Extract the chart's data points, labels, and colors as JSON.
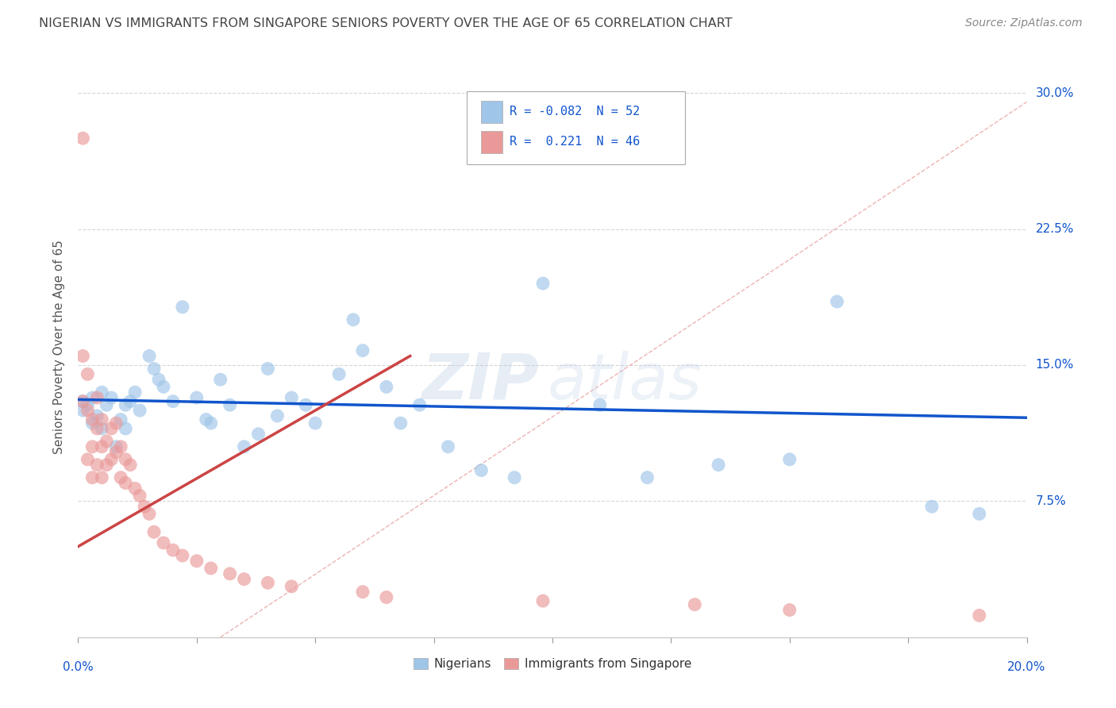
{
  "title": "NIGERIAN VS IMMIGRANTS FROM SINGAPORE SENIORS POVERTY OVER THE AGE OF 65 CORRELATION CHART",
  "source": "Source: ZipAtlas.com",
  "ylabel": "Seniors Poverty Over the Age of 65",
  "y_ticks": [
    0.0,
    0.075,
    0.15,
    0.225,
    0.3
  ],
  "y_tick_labels": [
    "",
    "7.5%",
    "15.0%",
    "22.5%",
    "30.0%"
  ],
  "x_ticks": [
    0.0,
    0.025,
    0.05,
    0.075,
    0.1,
    0.125,
    0.15,
    0.175,
    0.2
  ],
  "legend_R1": "-0.082",
  "legend_N1": "52",
  "legend_R2": "0.221",
  "legend_N2": "46",
  "blue_scatter_color": "#9fc5e8",
  "pink_scatter_color": "#ea9999",
  "blue_line_color": "#1155cc",
  "pink_line_color": "#cc4444",
  "diag_line_color": "#e8a0a0",
  "watermark_color": "#c0cfe8",
  "background_color": "#ffffff",
  "grid_color": "#cccccc",
  "title_color": "#444444",
  "source_color": "#888888",
  "axis_label_color": "#1155cc",
  "nigerians_x": [
    0.001,
    0.001,
    0.002,
    0.003,
    0.003,
    0.004,
    0.005,
    0.005,
    0.006,
    0.007,
    0.008,
    0.009,
    0.01,
    0.01,
    0.011,
    0.012,
    0.013,
    0.015,
    0.016,
    0.017,
    0.018,
    0.02,
    0.022,
    0.025,
    0.027,
    0.028,
    0.03,
    0.032,
    0.035,
    0.038,
    0.04,
    0.042,
    0.045,
    0.048,
    0.05,
    0.055,
    0.058,
    0.06,
    0.065,
    0.068,
    0.072,
    0.078,
    0.085,
    0.092,
    0.098,
    0.11,
    0.12,
    0.135,
    0.15,
    0.16,
    0.18,
    0.19
  ],
  "nigerians_y": [
    0.13,
    0.125,
    0.128,
    0.132,
    0.118,
    0.122,
    0.135,
    0.115,
    0.128,
    0.132,
    0.105,
    0.12,
    0.115,
    0.128,
    0.13,
    0.135,
    0.125,
    0.155,
    0.148,
    0.142,
    0.138,
    0.13,
    0.182,
    0.132,
    0.12,
    0.118,
    0.142,
    0.128,
    0.105,
    0.112,
    0.148,
    0.122,
    0.132,
    0.128,
    0.118,
    0.145,
    0.175,
    0.158,
    0.138,
    0.118,
    0.128,
    0.105,
    0.092,
    0.088,
    0.195,
    0.128,
    0.088,
    0.095,
    0.098,
    0.185,
    0.072,
    0.068
  ],
  "singapore_x": [
    0.001,
    0.001,
    0.001,
    0.002,
    0.002,
    0.002,
    0.003,
    0.003,
    0.003,
    0.004,
    0.004,
    0.004,
    0.005,
    0.005,
    0.005,
    0.006,
    0.006,
    0.007,
    0.007,
    0.008,
    0.008,
    0.009,
    0.009,
    0.01,
    0.01,
    0.011,
    0.012,
    0.013,
    0.014,
    0.015,
    0.016,
    0.018,
    0.02,
    0.022,
    0.025,
    0.028,
    0.032,
    0.035,
    0.04,
    0.045,
    0.06,
    0.065,
    0.098,
    0.13,
    0.15,
    0.19
  ],
  "singapore_y": [
    0.275,
    0.155,
    0.13,
    0.145,
    0.125,
    0.098,
    0.12,
    0.105,
    0.088,
    0.132,
    0.115,
    0.095,
    0.12,
    0.105,
    0.088,
    0.108,
    0.095,
    0.115,
    0.098,
    0.118,
    0.102,
    0.105,
    0.088,
    0.098,
    0.085,
    0.095,
    0.082,
    0.078,
    0.072,
    0.068,
    0.058,
    0.052,
    0.048,
    0.045,
    0.042,
    0.038,
    0.035,
    0.032,
    0.03,
    0.028,
    0.025,
    0.022,
    0.02,
    0.018,
    0.015,
    0.012
  ],
  "blue_trend_x0": 0.0,
  "blue_trend_y0": 0.131,
  "blue_trend_x1": 0.2,
  "blue_trend_y1": 0.121,
  "pink_trend_x0": 0.0,
  "pink_trend_y0": 0.05,
  "pink_trend_x1": 0.07,
  "pink_trend_y1": 0.155,
  "xmin": 0.0,
  "xmax": 0.2,
  "ymin": 0.0,
  "ymax": 0.32
}
